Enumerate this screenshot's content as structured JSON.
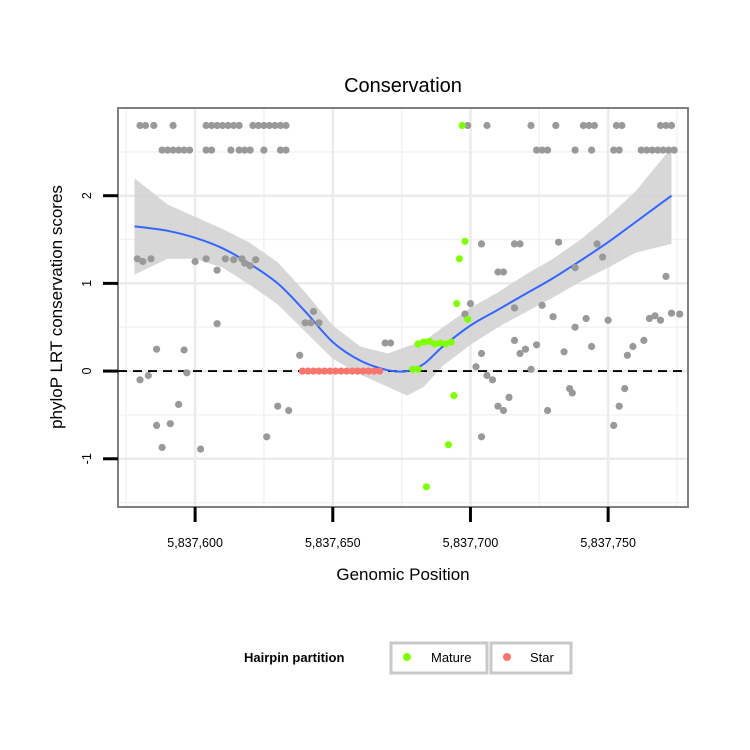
{
  "chart_data": {
    "type": "scatter",
    "title": "Conservation",
    "xlabel": "Genomic Position",
    "ylabel": "phyloP LRT conservation scores",
    "xlim": [
      5837572,
      5837779
    ],
    "ylim": [
      -1.55,
      3.0
    ],
    "x_ticks": [
      5837600,
      5837650,
      5837700,
      5837750
    ],
    "x_tick_labels": [
      "5,837,600",
      "5,837,650",
      "5,837,700",
      "5,837,750"
    ],
    "y_ticks": [
      -1,
      0,
      1,
      2
    ],
    "y_tick_labels": [
      "-1",
      "0",
      "1",
      "2"
    ],
    "grid": true,
    "reference_line": {
      "y": 0,
      "style": "dashed"
    },
    "legend": {
      "title": "Hairpin partition",
      "position": "bottom",
      "entries": [
        {
          "label": "Mature",
          "color": "#7FFF00"
        },
        {
          "label": "Star",
          "color": "#F8766D"
        }
      ]
    },
    "colors": {
      "other": "#999999",
      "mature": "#7FFF00",
      "star": "#F8766D",
      "smooth_line": "#3366FF",
      "ribbon": "#d3d3d3"
    },
    "series": [
      {
        "name": "Other",
        "points": [
          [
            5837580,
            2.8
          ],
          [
            5837582,
            2.8
          ],
          [
            5837585,
            2.8
          ],
          [
            5837592,
            2.8
          ],
          [
            5837604,
            2.8
          ],
          [
            5837606,
            2.8
          ],
          [
            5837608,
            2.8
          ],
          [
            5837610,
            2.8
          ],
          [
            5837612,
            2.8
          ],
          [
            5837614,
            2.8
          ],
          [
            5837616,
            2.8
          ],
          [
            5837621,
            2.8
          ],
          [
            5837623,
            2.8
          ],
          [
            5837625,
            2.8
          ],
          [
            5837627,
            2.8
          ],
          [
            5837629,
            2.8
          ],
          [
            5837631,
            2.8
          ],
          [
            5837633,
            2.8
          ],
          [
            5837588,
            2.52
          ],
          [
            5837590,
            2.52
          ],
          [
            5837592,
            2.52
          ],
          [
            5837594,
            2.52
          ],
          [
            5837596,
            2.52
          ],
          [
            5837598,
            2.52
          ],
          [
            5837604,
            2.52
          ],
          [
            5837606,
            2.52
          ],
          [
            5837613,
            2.52
          ],
          [
            5837616,
            2.52
          ],
          [
            5837618,
            2.52
          ],
          [
            5837620,
            2.52
          ],
          [
            5837625,
            2.52
          ],
          [
            5837631,
            2.52
          ],
          [
            5837633,
            2.52
          ],
          [
            5837699,
            2.8
          ],
          [
            5837706,
            2.8
          ],
          [
            5837722,
            2.8
          ],
          [
            5837731,
            2.8
          ],
          [
            5837741,
            2.8
          ],
          [
            5837743,
            2.8
          ],
          [
            5837745,
            2.8
          ],
          [
            5837753,
            2.8
          ],
          [
            5837755,
            2.8
          ],
          [
            5837769,
            2.8
          ],
          [
            5837771,
            2.8
          ],
          [
            5837773,
            2.8
          ],
          [
            5837724,
            2.52
          ],
          [
            5837726,
            2.52
          ],
          [
            5837728,
            2.52
          ],
          [
            5837738,
            2.52
          ],
          [
            5837744,
            2.52
          ],
          [
            5837752,
            2.52
          ],
          [
            5837754,
            2.52
          ],
          [
            5837762,
            2.52
          ],
          [
            5837764,
            2.52
          ],
          [
            5837766,
            2.52
          ],
          [
            5837768,
            2.52
          ],
          [
            5837770,
            2.52
          ],
          [
            5837772,
            2.52
          ],
          [
            5837774,
            2.52
          ],
          [
            5837579,
            1.28
          ],
          [
            5837581,
            1.25
          ],
          [
            5837584,
            1.28
          ],
          [
            5837600,
            1.25
          ],
          [
            5837604,
            1.28
          ],
          [
            5837608,
            1.15
          ],
          [
            5837611,
            1.28
          ],
          [
            5837614,
            1.27
          ],
          [
            5837617,
            1.28
          ],
          [
            5837618,
            1.23
          ],
          [
            5837620,
            1.2
          ],
          [
            5837622,
            1.27
          ],
          [
            5837596,
            0.24
          ],
          [
            5837586,
            0.25
          ],
          [
            5837580,
            -0.1
          ],
          [
            5837583,
            -0.05
          ],
          [
            5837586,
            -0.62
          ],
          [
            5837588,
            -0.87
          ],
          [
            5837591,
            -0.6
          ],
          [
            5837594,
            -0.38
          ],
          [
            5837597,
            -0.02
          ],
          [
            5837602,
            -0.89
          ],
          [
            5837608,
            0.54
          ],
          [
            5837626,
            -0.75
          ],
          [
            5837630,
            -0.4
          ],
          [
            5837634,
            -0.45
          ],
          [
            5837638,
            0.18
          ],
          [
            5837640,
            0.55
          ],
          [
            5837642,
            0.55
          ],
          [
            5837643,
            0.68
          ],
          [
            5837645,
            0.55
          ],
          [
            5837669,
            0.32
          ],
          [
            5837671,
            0.32
          ],
          [
            5837700,
            0.77
          ],
          [
            5837704,
            1.45
          ],
          [
            5837710,
            1.13
          ],
          [
            5837712,
            1.13
          ],
          [
            5837716,
            1.45
          ],
          [
            5837718,
            1.45
          ],
          [
            5837702,
            0.05
          ],
          [
            5837704,
            0.2
          ],
          [
            5837706,
            -0.05
          ],
          [
            5837708,
            -0.1
          ],
          [
            5837710,
            -0.4
          ],
          [
            5837712,
            -0.45
          ],
          [
            5837714,
            -0.3
          ],
          [
            5837704,
            -0.75
          ],
          [
            5837716,
            0.35
          ],
          [
            5837718,
            0.2
          ],
          [
            5837720,
            0.25
          ],
          [
            5837722,
            0.02
          ],
          [
            5837724,
            0.3
          ],
          [
            5837726,
            0.75
          ],
          [
            5837730,
            0.62
          ],
          [
            5837734,
            0.22
          ],
          [
            5837738,
            0.5
          ],
          [
            5837736,
            -0.2
          ],
          [
            5837728,
            -0.45
          ],
          [
            5837732,
            1.47
          ],
          [
            5837738,
            1.18
          ],
          [
            5837742,
            0.6
          ],
          [
            5837744,
            0.28
          ],
          [
            5837746,
            1.45
          ],
          [
            5837748,
            1.3
          ],
          [
            5837750,
            0.58
          ],
          [
            5837752,
            -0.62
          ],
          [
            5837754,
            -0.4
          ],
          [
            5837756,
            -0.2
          ],
          [
            5837757,
            0.18
          ],
          [
            5837759,
            0.28
          ],
          [
            5837763,
            0.35
          ],
          [
            5837765,
            0.6
          ],
          [
            5837767,
            0.63
          ],
          [
            5837769,
            0.58
          ],
          [
            5837771,
            1.08
          ],
          [
            5837773,
            0.66
          ],
          [
            5837776,
            0.65
          ],
          [
            5837698,
            0.65
          ],
          [
            5837716,
            0.72
          ],
          [
            5837737,
            -0.25
          ]
        ]
      },
      {
        "name": "Mature",
        "points": [
          [
            5837697,
            2.8
          ],
          [
            5837698,
            1.48
          ],
          [
            5837696,
            1.28
          ],
          [
            5837695,
            0.77
          ],
          [
            5837699,
            0.59
          ],
          [
            5837681,
            0.31
          ],
          [
            5837683,
            0.33
          ],
          [
            5837685,
            0.34
          ],
          [
            5837687,
            0.31
          ],
          [
            5837689,
            0.32
          ],
          [
            5837691,
            0.31
          ],
          [
            5837693,
            0.33
          ],
          [
            5837679,
            0.02
          ],
          [
            5837681,
            0.02
          ],
          [
            5837694,
            -0.28
          ],
          [
            5837692,
            -0.84
          ],
          [
            5837684,
            -1.32
          ]
        ]
      },
      {
        "name": "Star",
        "points": [
          [
            5837639,
            0
          ],
          [
            5837641,
            0
          ],
          [
            5837643,
            0
          ],
          [
            5837645,
            0
          ],
          [
            5837647,
            0
          ],
          [
            5837649,
            0
          ],
          [
            5837651,
            0
          ],
          [
            5837653,
            0
          ],
          [
            5837655,
            0
          ],
          [
            5837657,
            0
          ],
          [
            5837659,
            0
          ],
          [
            5837661,
            0
          ],
          [
            5837663,
            0
          ],
          [
            5837665,
            0
          ],
          [
            5837667,
            0
          ]
        ]
      }
    ],
    "smooth": {
      "name": "loess fit",
      "x": [
        5837578,
        5837590,
        5837600,
        5837610,
        5837620,
        5837630,
        5837640,
        5837650,
        5837660,
        5837670,
        5837677,
        5837683,
        5837690,
        5837700,
        5837710,
        5837720,
        5837730,
        5837740,
        5837750,
        5837760,
        5837773
      ],
      "y": [
        1.65,
        1.6,
        1.52,
        1.4,
        1.22,
        1.0,
        0.68,
        0.33,
        0.12,
        0.01,
        0.0,
        0.08,
        0.28,
        0.52,
        0.7,
        0.88,
        1.06,
        1.26,
        1.47,
        1.7,
        2.0
      ],
      "lower": [
        1.1,
        1.28,
        1.28,
        1.18,
        0.98,
        0.76,
        0.45,
        0.14,
        -0.04,
        -0.18,
        -0.28,
        -0.18,
        0.06,
        0.3,
        0.5,
        0.67,
        0.84,
        1.02,
        1.18,
        1.35,
        1.45
      ],
      "upper": [
        2.2,
        1.9,
        1.76,
        1.62,
        1.46,
        1.24,
        0.9,
        0.52,
        0.28,
        0.2,
        0.28,
        0.34,
        0.5,
        0.72,
        0.9,
        1.1,
        1.28,
        1.5,
        1.76,
        2.05,
        2.55
      ]
    }
  }
}
